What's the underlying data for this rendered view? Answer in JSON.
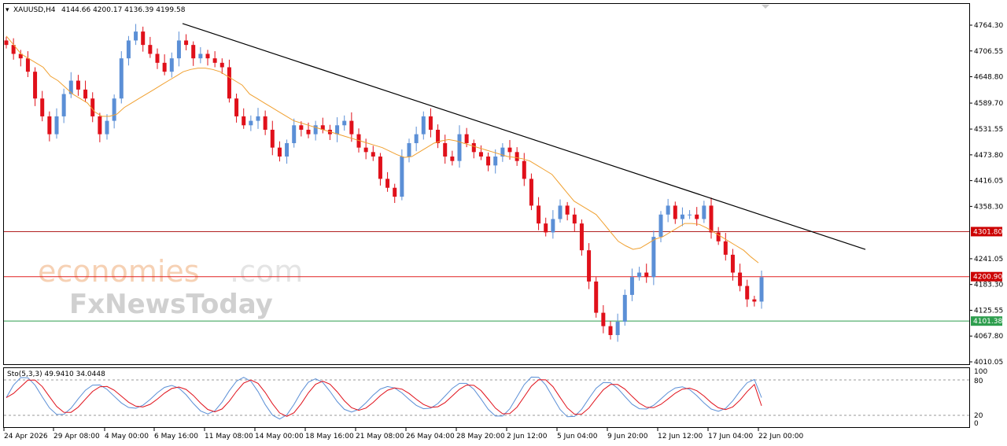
{
  "header": {
    "symbol": "XAUUSD,H4",
    "ohlc": "4144.66 4200.17 4136.39 4199.58",
    "indicator": "Sto(5,3,3) 49.9410 34.0448"
  },
  "watermark": {
    "brand1": "economies",
    "brand1_suffix": ".com",
    "brand2": "FxNewsToday"
  },
  "colors": {
    "bull": "#5b8fd6",
    "bear": "#e0101a",
    "ma": "#f0a030",
    "trendline": "#000000",
    "level_red": "#cc0000",
    "level_green": "#2e9e4e",
    "stoch_main": "#5b8fd6",
    "stoch_signal": "#e0101a",
    "background": "#ffffff"
  },
  "chart_data": {
    "type": "candlestick",
    "title": "XAUUSD,H4",
    "ylim": [
      4010.05,
      4770
    ],
    "y_ticks": [
      "4764.30",
      "4706.55",
      "4648.80",
      "4589.70",
      "4531.55",
      "4473.80",
      "4416.05",
      "4358.30",
      "4301.80",
      "4241.05",
      "4183.30",
      "4125.55",
      "4067.80",
      "4010.05"
    ],
    "x_ticks": [
      "24 Apr 2026",
      "29 Apr 08:00",
      "4 May 00:00",
      "6 May 16:00",
      "11 May 08:00",
      "14 May 00:00",
      "18 May 16:00",
      "21 May 08:00",
      "26 May 04:00",
      "28 May 20:00",
      "2 Jun 12:00",
      "5 Jun 04:00",
      "9 Jun 20:00",
      "12 Jun 12:00",
      "17 Jun 04:00",
      "22 Jun 00:00"
    ],
    "levels": [
      {
        "label": "4301.80",
        "value": 4301.8,
        "color": "#cc0000"
      },
      {
        "label": "4200.90",
        "value": 4200.9,
        "color": "#cc0000"
      },
      {
        "label": "4101.38",
        "value": 4101.38,
        "color": "#2e9e4e"
      }
    ],
    "trendline": {
      "from": [
        20,
        4768
      ],
      "to": [
        146,
        4262
      ]
    },
    "close_path": [
      4720,
      4700,
      4690,
      4660,
      4600,
      4560,
      4520,
      4560,
      4610,
      4640,
      4620,
      4600,
      4560,
      4520,
      4550,
      4600,
      4690,
      4730,
      4750,
      4720,
      4700,
      4680,
      4660,
      4690,
      4730,
      4720,
      4690,
      4700,
      4690,
      4680,
      4670,
      4600,
      4560,
      4540,
      4550,
      4560,
      4530,
      4490,
      4470,
      4500,
      4540,
      4530,
      4520,
      4540,
      4530,
      4520,
      4540,
      4550,
      4520,
      4490,
      4480,
      4470,
      4420,
      4400,
      4380,
      4470,
      4500,
      4520,
      4560,
      4530,
      4500,
      4470,
      4460,
      4520,
      4500,
      4480,
      4470,
      4450,
      4470,
      4490,
      4480,
      4460,
      4420,
      4360,
      4320,
      4300,
      4330,
      4360,
      4340,
      4320,
      4260,
      4190,
      4120,
      4090,
      4070,
      4100,
      4160,
      4200,
      4210,
      4200,
      4290,
      4340,
      4360,
      4330,
      4340,
      4340,
      4330,
      4360,
      4300,
      4280,
      4250,
      4210,
      4180,
      4150,
      4145,
      4199.58
    ],
    "ma_path": [
      4740,
      4720,
      4700,
      4690,
      4680,
      4670,
      4650,
      4640,
      4625,
      4610,
      4600,
      4590,
      4570,
      4560,
      4560,
      4565,
      4580,
      4590,
      4600,
      4610,
      4620,
      4630,
      4640,
      4650,
      4660,
      4665,
      4668,
      4668,
      4665,
      4660,
      4650,
      4640,
      4630,
      4610,
      4600,
      4590,
      4580,
      4570,
      4560,
      4550,
      4545,
      4540,
      4535,
      4530,
      4525,
      4520,
      4515,
      4510,
      4505,
      4500,
      4495,
      4490,
      4482,
      4474,
      4468,
      4470,
      4480,
      4490,
      4500,
      4505,
      4508,
      4505,
      4500,
      4495,
      4490,
      4485,
      4480,
      4475,
      4470,
      4468,
      4465,
      4460,
      4450,
      4440,
      4430,
      4410,
      4390,
      4370,
      4360,
      4350,
      4340,
      4320,
      4300,
      4280,
      4270,
      4262,
      4265,
      4275,
      4285,
      4290,
      4300,
      4310,
      4320,
      4320,
      4318,
      4310,
      4300,
      4290,
      4280,
      4270,
      4260,
      4245,
      4232
    ],
    "stochastic": {
      "ylim": [
        0,
        100
      ],
      "y_ticks": [
        "100",
        "80",
        "20",
        "0"
      ],
      "levels": [
        80,
        20
      ],
      "main_last": 49.941,
      "signal_last": 34.0448
    }
  }
}
